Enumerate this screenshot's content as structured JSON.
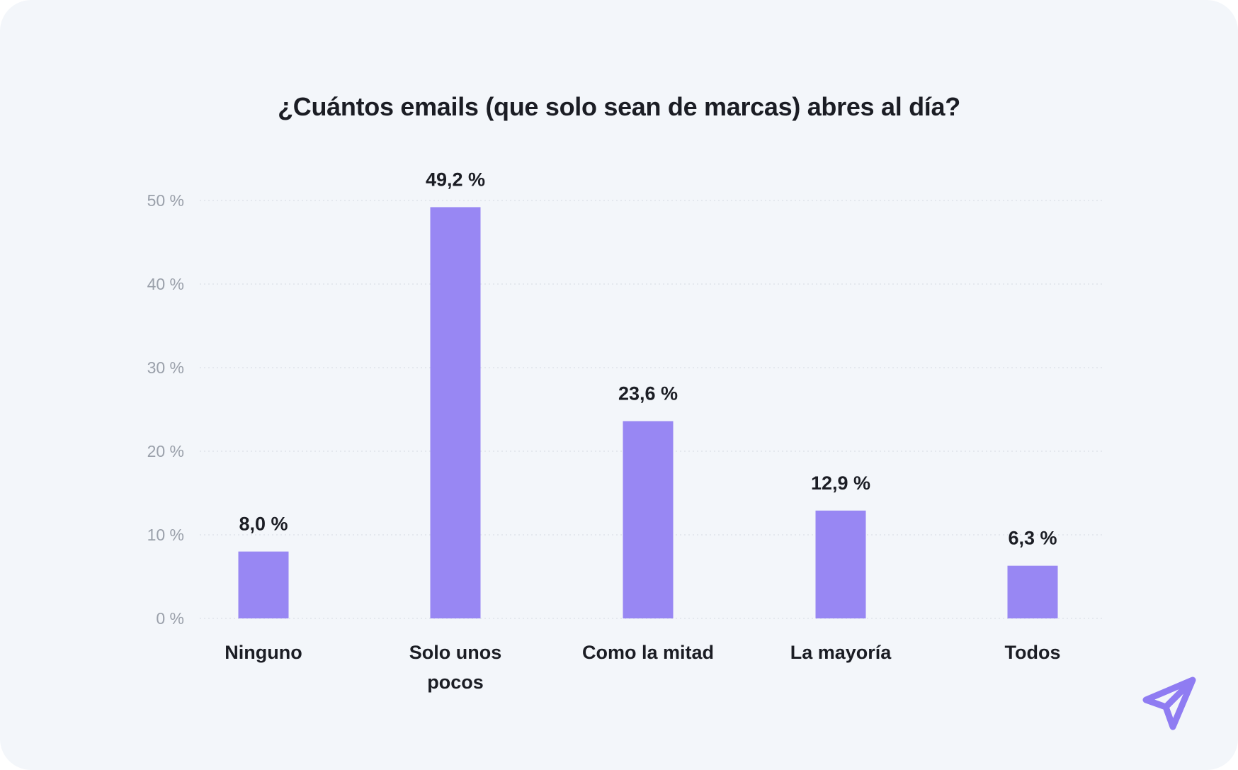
{
  "chart_data": {
    "type": "bar",
    "title": "¿Cuántos emails (que solo sean de marcas) abres al día?",
    "categories": [
      [
        "Ninguno"
      ],
      [
        "Solo unos",
        "pocos"
      ],
      [
        "Como la mitad"
      ],
      [
        "La mayoría"
      ],
      [
        "Todos"
      ]
    ],
    "values": [
      8.0,
      49.2,
      23.6,
      12.9,
      6.3
    ],
    "value_labels": [
      "8,0 %",
      "49,2 %",
      "23,6 %",
      "12,9 %",
      "6,3 %"
    ],
    "ylim": [
      0,
      50
    ],
    "yticks": [
      0,
      10,
      20,
      30,
      40,
      50
    ],
    "ytick_labels": [
      "0 %",
      "10 %",
      "20 %",
      "30 %",
      "40 %",
      "50 %"
    ],
    "xlabel": "",
    "ylabel": "",
    "grid": true,
    "bar_color": "#9887f3",
    "grid_color": "#dfe3ea"
  },
  "logo": {
    "icon": "paper-plane-icon",
    "color": "#8f7cf2"
  }
}
